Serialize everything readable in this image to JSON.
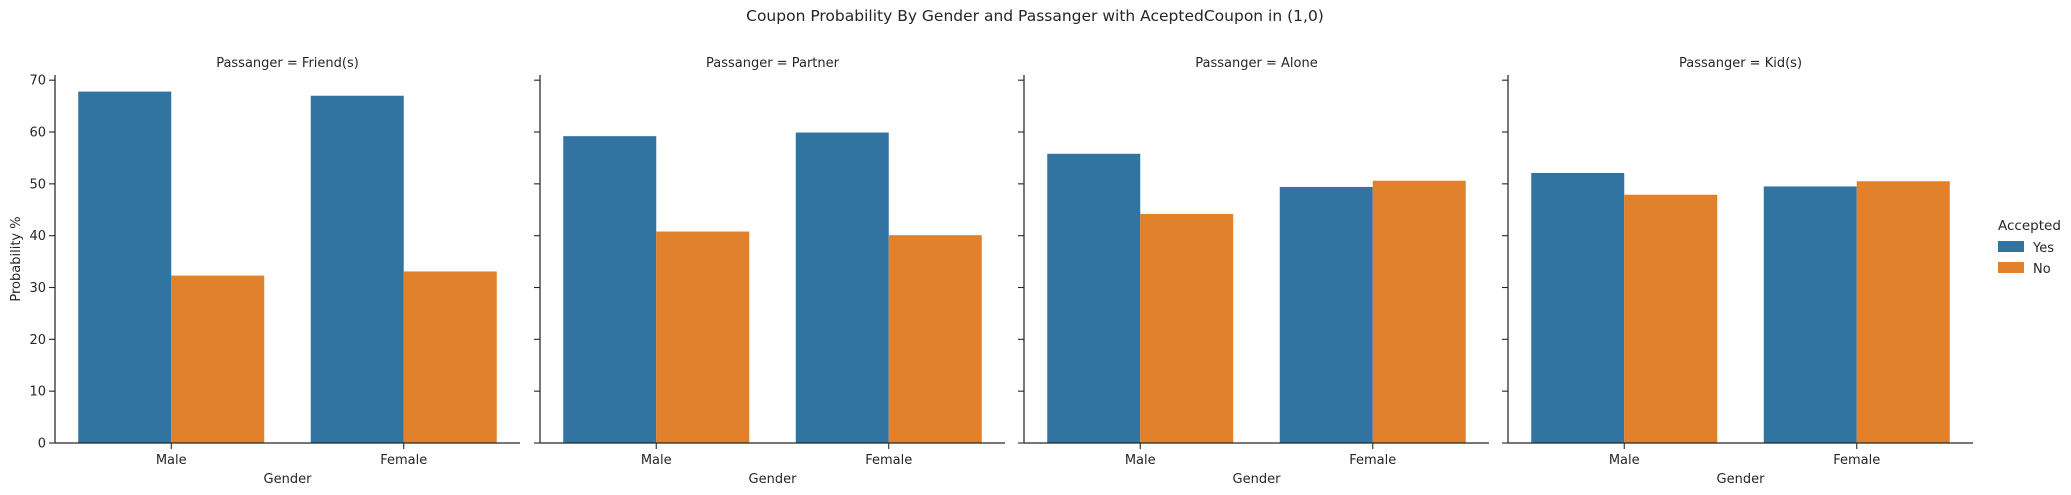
{
  "title": "Coupon Probability By Gender and Passanger with AceptedCoupon in (1,0)",
  "legend": {
    "title": "Accepted",
    "items": [
      {
        "label": "Yes",
        "color": "#3274a1"
      },
      {
        "label": "No",
        "color": "#e1812c"
      }
    ]
  },
  "chart_data": {
    "type": "bar",
    "title": "Coupon Probability By Gender and Passanger with AceptedCoupon in (1,0)",
    "xlabel": "Gender",
    "ylabel": "Probability %",
    "ylim": [
      0,
      71
    ],
    "yticks": [
      0,
      10,
      20,
      30,
      40,
      50,
      60,
      70
    ],
    "categories": [
      "Male",
      "Female"
    ],
    "grid": false,
    "legend_position": "right",
    "hue": "Accepted",
    "series_colors": {
      "Yes": "#3274a1",
      "No": "#e1812c"
    },
    "facets": [
      {
        "title": "Passanger = Friend(s)",
        "series": [
          {
            "name": "Yes",
            "values": [
              67.8,
              67.0
            ]
          },
          {
            "name": "No",
            "values": [
              32.3,
              33.1
            ]
          }
        ]
      },
      {
        "title": "Passanger = Partner",
        "series": [
          {
            "name": "Yes",
            "values": [
              59.2,
              59.9
            ]
          },
          {
            "name": "No",
            "values": [
              40.8,
              40.1
            ]
          }
        ]
      },
      {
        "title": "Passanger = Alone",
        "series": [
          {
            "name": "Yes",
            "values": [
              55.8,
              49.4
            ]
          },
          {
            "name": "No",
            "values": [
              44.2,
              50.6
            ]
          }
        ]
      },
      {
        "title": "Passanger = Kid(s)",
        "series": [
          {
            "name": "Yes",
            "values": [
              52.1,
              49.5
            ]
          },
          {
            "name": "No",
            "values": [
              47.9,
              50.5
            ]
          }
        ]
      }
    ]
  }
}
